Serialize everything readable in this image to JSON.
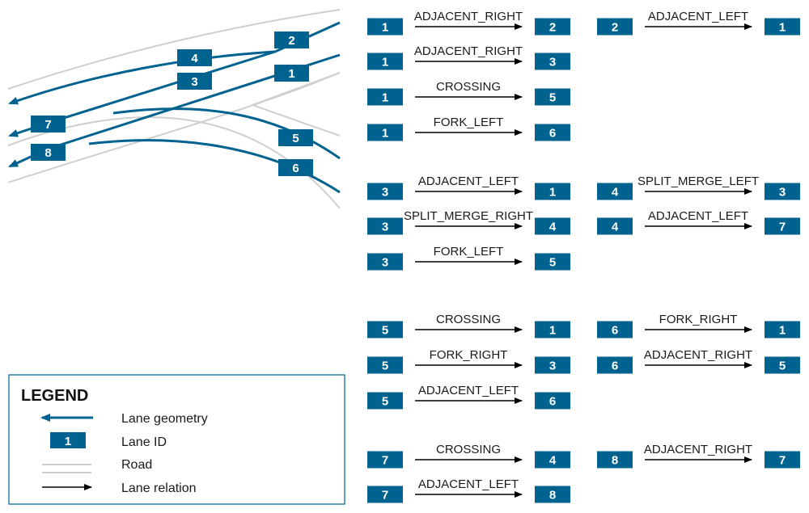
{
  "colors": {
    "lane": "#00628f",
    "road": "#cfcfcf",
    "arrow": "#000000",
    "legend_border": "#00628f"
  },
  "lanes": {
    "ids": [
      "1",
      "2",
      "3",
      "4",
      "5",
      "6",
      "7",
      "8"
    ]
  },
  "relations": [
    {
      "from": "1",
      "type": "ADJACENT_RIGHT",
      "to": "2"
    },
    {
      "from": "2",
      "type": "ADJACENT_LEFT",
      "to": "1"
    },
    {
      "from": "1",
      "type": "ADJACENT_RIGHT",
      "to": "3"
    },
    {
      "from": "1",
      "type": "CROSSING",
      "to": "5"
    },
    {
      "from": "1",
      "type": "FORK_LEFT",
      "to": "6"
    },
    {
      "from": "3",
      "type": "ADJACENT_LEFT",
      "to": "1"
    },
    {
      "from": "4",
      "type": "SPLIT_MERGE_LEFT",
      "to": "3"
    },
    {
      "from": "3",
      "type": "SPLIT_MERGE_RIGHT",
      "to": "4"
    },
    {
      "from": "4",
      "type": "ADJACENT_LEFT",
      "to": "7"
    },
    {
      "from": "3",
      "type": "FORK_LEFT",
      "to": "5"
    },
    {
      "from": "5",
      "type": "CROSSING",
      "to": "1"
    },
    {
      "from": "6",
      "type": "FORK_RIGHT",
      "to": "1"
    },
    {
      "from": "5",
      "type": "FORK_RIGHT",
      "to": "3"
    },
    {
      "from": "6",
      "type": "ADJACENT_RIGHT",
      "to": "5"
    },
    {
      "from": "5",
      "type": "ADJACENT_LEFT",
      "to": "6"
    },
    {
      "from": "7",
      "type": "CROSSING",
      "to": "4"
    },
    {
      "from": "8",
      "type": "ADJACENT_RIGHT",
      "to": "7"
    },
    {
      "from": "7",
      "type": "ADJACENT_LEFT",
      "to": "8"
    }
  ],
  "legend": {
    "title": "LEGEND",
    "lane_geometry": "Lane geometry",
    "lane_id_sample": "1",
    "lane_id": "Lane ID",
    "road": "Road",
    "lane_relation": "Lane relation"
  }
}
